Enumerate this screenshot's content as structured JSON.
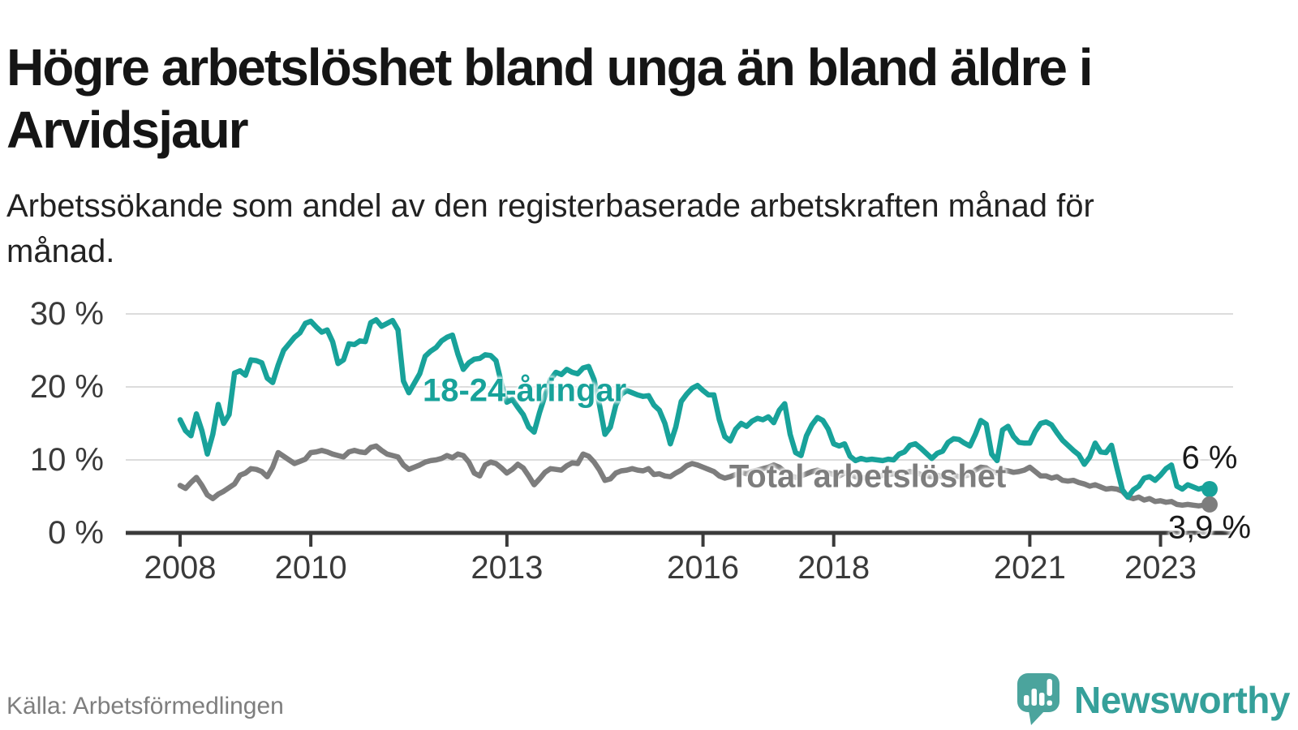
{
  "page": {
    "title": "Högre arbetslöshet bland unga än bland äldre i Arvidsjaur",
    "subtitle": "Arbetssökande som andel av den registerbaserade arbetskraften månad för månad."
  },
  "chart_data": {
    "type": "line",
    "unit": "%",
    "x_frequency": "monthly",
    "x_range": [
      "2008-01",
      "2023-10"
    ],
    "ylim": [
      0,
      30
    ],
    "y_ticks": [
      0,
      10,
      20,
      30
    ],
    "y_tick_format": "{v} %",
    "x_ticks": [
      2008,
      2010,
      2013,
      2016,
      2018,
      2021,
      2023
    ],
    "grid": true,
    "legend_position": "inline-labels",
    "series": [
      {
        "name": "18-24-åringar",
        "color": "#18a29a",
        "end_label": "6 %",
        "end_label_position": "above",
        "label_anchor": {
          "year": 2013.27,
          "value": 19.5
        },
        "values": [
          15.5,
          14.0,
          13.3,
          16.3,
          14.0,
          10.8,
          13.5,
          17.6,
          15.0,
          16.2,
          21.9,
          22.2,
          21.6,
          23.7,
          23.6,
          23.3,
          21.2,
          20.6,
          23.0,
          25.0,
          25.9,
          26.8,
          27.4,
          28.7,
          29.0,
          28.2,
          27.5,
          27.8,
          26.2,
          23.2,
          23.7,
          25.9,
          25.8,
          26.3,
          26.2,
          28.8,
          29.2,
          28.3,
          28.7,
          29.1,
          27.8,
          20.8,
          19.2,
          20.5,
          21.8,
          24.2,
          24.9,
          25.4,
          26.3,
          26.8,
          27.1,
          24.5,
          22.4,
          23.3,
          23.8,
          23.9,
          24.4,
          24.3,
          23.6,
          20.5,
          17.9,
          18.3,
          17.2,
          16.2,
          14.5,
          13.8,
          16.5,
          18.8,
          21.0,
          22.0,
          21.7,
          22.4,
          22.0,
          21.8,
          22.6,
          22.8,
          21.0,
          17.5,
          13.5,
          14.5,
          17.5,
          19.0,
          19.5,
          19.2,
          18.9,
          18.7,
          18.8,
          17.5,
          16.8,
          15.0,
          12.2,
          14.5,
          18.0,
          19.0,
          19.8,
          20.2,
          19.5,
          18.9,
          18.9,
          15.5,
          13.2,
          12.6,
          14.2,
          15.0,
          14.6,
          15.3,
          15.7,
          15.5,
          15.9,
          15.1,
          16.8,
          17.7,
          13.5,
          11.0,
          10.6,
          13.3,
          14.8,
          15.8,
          15.4,
          14.2,
          12.2,
          11.9,
          12.2,
          10.5,
          9.9,
          10.2,
          10.0,
          10.1,
          10.0,
          9.9,
          10.1,
          10.0,
          10.8,
          11.1,
          12.0,
          12.2,
          11.6,
          10.9,
          10.2,
          10.9,
          11.2,
          12.4,
          12.9,
          12.8,
          12.3,
          11.9,
          13.5,
          15.4,
          14.9,
          10.8,
          9.9,
          14.1,
          14.6,
          13.2,
          12.4,
          12.3,
          12.3,
          13.9,
          15.0,
          15.2,
          14.8,
          13.7,
          12.7,
          12.0,
          11.3,
          10.7,
          9.4,
          10.4,
          12.3,
          11.1,
          11.0,
          12.0,
          8.9,
          5.9,
          4.9,
          5.9,
          6.4,
          7.5,
          7.7,
          7.2,
          7.9,
          8.8,
          9.3,
          6.4,
          6.0,
          6.6,
          6.3,
          6.0,
          6.2,
          6.0
        ]
      },
      {
        "name": "Total arbetslöshet",
        "color": "#7d7d7d",
        "end_label": "3,9 %",
        "end_label_position": "below",
        "label_anchor": {
          "year": 2018.52,
          "value": 7.65
        },
        "values": [
          6.5,
          6.1,
          6.9,
          7.6,
          6.5,
          5.2,
          4.7,
          5.3,
          5.7,
          6.2,
          6.7,
          7.9,
          8.2,
          8.8,
          8.7,
          8.4,
          7.7,
          9.0,
          11.0,
          10.5,
          10.0,
          9.5,
          9.8,
          10.1,
          11.0,
          11.1,
          11.3,
          11.1,
          10.8,
          10.6,
          10.4,
          11.1,
          11.3,
          11.1,
          11.0,
          11.7,
          11.9,
          11.3,
          10.8,
          10.6,
          10.4,
          9.3,
          8.7,
          9.0,
          9.3,
          9.7,
          9.9,
          10.0,
          10.2,
          10.6,
          10.3,
          10.8,
          10.6,
          9.7,
          8.2,
          7.8,
          9.3,
          9.7,
          9.5,
          8.9,
          8.2,
          8.7,
          9.4,
          8.9,
          7.8,
          6.6,
          7.4,
          8.3,
          8.8,
          8.7,
          8.6,
          9.2,
          9.6,
          9.5,
          10.8,
          10.5,
          9.7,
          8.6,
          7.2,
          7.4,
          8.2,
          8.5,
          8.6,
          8.8,
          8.6,
          8.5,
          8.8,
          8.0,
          8.1,
          7.8,
          7.7,
          8.2,
          8.6,
          9.2,
          9.5,
          9.3,
          9.0,
          8.7,
          8.4,
          7.8,
          7.5,
          7.7,
          8.0,
          8.3,
          8.1,
          8.4,
          8.6,
          8.8,
          9.0,
          9.3,
          9.0,
          8.4,
          7.9,
          7.6,
          7.8,
          8.1,
          8.4,
          8.6,
          8.4,
          8.2,
          8.0,
          7.8,
          8.2,
          8.0,
          7.7,
          7.5,
          7.6,
          7.8,
          7.7,
          7.9,
          8.0,
          8.1,
          8.0,
          8.2,
          8.4,
          8.3,
          8.0,
          7.8,
          7.7,
          7.9,
          7.7,
          7.8,
          7.9,
          7.7,
          7.8,
          8.0,
          8.6,
          9.0,
          8.9,
          8.4,
          8.2,
          8.6,
          8.5,
          8.3,
          8.4,
          8.6,
          9.0,
          8.4,
          7.8,
          7.8,
          7.5,
          7.7,
          7.2,
          7.1,
          7.2,
          6.9,
          6.7,
          6.4,
          6.6,
          6.3,
          6.0,
          6.1,
          6.0,
          5.7,
          4.9,
          4.7,
          4.9,
          4.5,
          4.7,
          4.3,
          4.4,
          4.2,
          4.3,
          3.9,
          3.8,
          3.9,
          3.8,
          3.7,
          3.8,
          3.9
        ]
      }
    ]
  },
  "footer": {
    "source": "Källa: Arbetsförmedlingen",
    "brand": "Newsworthy"
  },
  "colors": {
    "accent_teal": "#18a29a",
    "series_gray": "#7d7d7d",
    "axis": "#3a3a3a",
    "gridline": "#dcdcdc",
    "logo_teal": "#4ba49d"
  },
  "icons": {
    "brand_logo": "newsworthy-speech-bubble-bar-chart-icon"
  }
}
